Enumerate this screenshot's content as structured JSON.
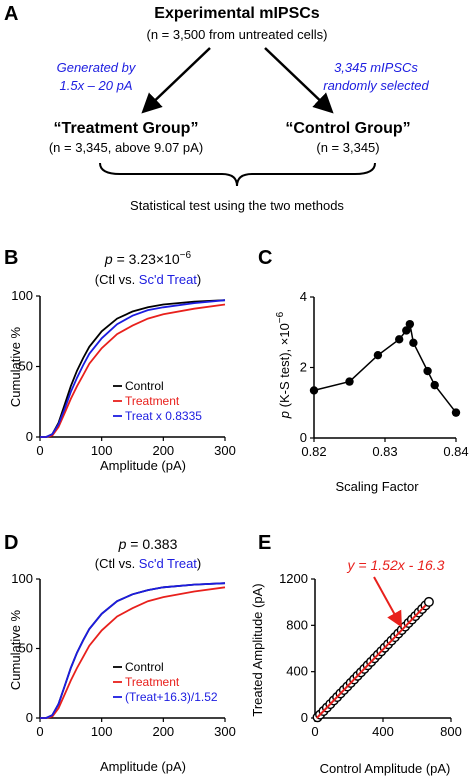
{
  "panel_letters": {
    "a": "A",
    "b": "B",
    "c": "C",
    "d": "D",
    "e": "E"
  },
  "panel_a": {
    "title": "Experimental mIPSCs",
    "title_sub": "(n = 3,500 from untreated cells)",
    "left_note": [
      "Generated by",
      "1.5x – 20 pA"
    ],
    "right_note": [
      "3,345 mIPSCs",
      "randomly selected"
    ],
    "left_group": "“Treatment Group”",
    "left_group_sub": "(n = 3,345, above 9.07 pA)",
    "right_group": "“Control Group”",
    "right_group_sub": "(n = 3,345)",
    "footer": "Statistical test using the two methods"
  },
  "colors": {
    "control": "#000000",
    "treatment": "#e8201c",
    "scaled": "#1c1ce0",
    "note": "#1c1ce0"
  },
  "chart_data": [
    {
      "panel": "B",
      "type": "line",
      "pvalue_prefix": "p",
      "pvalue_text": " = 3.23×10",
      "pvalue_exp": "−6",
      "comparison_pre": "(Ctl vs. ",
      "comparison_highlight": "Sc'd Treat",
      "comparison_post": ")",
      "xlabel": "Amplitude (pA)",
      "ylabel": "Cumulative %",
      "xlim": [
        0,
        300
      ],
      "ylim": [
        0,
        100
      ],
      "xticks": [
        "0",
        "100",
        "200",
        "300"
      ],
      "yticks": [
        "0",
        "50",
        "100"
      ],
      "legend_position": "bottom-right",
      "series": [
        {
          "name": "Control",
          "color": "#000000",
          "x": [
            0,
            10,
            20,
            30,
            40,
            50,
            60,
            70,
            80,
            100,
            125,
            150,
            175,
            200,
            250,
            300
          ],
          "y": [
            0,
            0,
            2,
            10,
            23,
            36,
            47,
            56,
            64,
            75,
            84,
            89,
            92,
            94,
            96,
            97
          ]
        },
        {
          "name": "Treatment",
          "color": "#e8201c",
          "x": [
            0,
            10,
            20,
            30,
            40,
            50,
            60,
            70,
            80,
            100,
            125,
            150,
            175,
            200,
            250,
            300
          ],
          "y": [
            0,
            0,
            1,
            7,
            17,
            27,
            36,
            44,
            52,
            63,
            73,
            79,
            84,
            87,
            91,
            94
          ]
        },
        {
          "name": "Treat x 0.8335",
          "color": "#1c1ce0",
          "x": [
            0,
            10,
            20,
            30,
            40,
            50,
            60,
            70,
            80,
            100,
            125,
            150,
            175,
            200,
            250,
            300
          ],
          "y": [
            0,
            0,
            2,
            9,
            20,
            32,
            42,
            51,
            59,
            70,
            80,
            86,
            90,
            92,
            95,
            97
          ]
        }
      ]
    },
    {
      "panel": "C",
      "type": "line",
      "xlabel": "Scaling Factor",
      "ylabel_prefix": "p",
      "ylabel_text": " (K-S test), ×10",
      "ylabel_exp": "−6",
      "xlim": [
        0.82,
        0.84
      ],
      "ylim": [
        0,
        4
      ],
      "xticks": [
        "0.82",
        "0.83",
        "0.84"
      ],
      "yticks": [
        "0",
        "2",
        "4"
      ],
      "series": [
        {
          "x": [
            0.82,
            0.825,
            0.829,
            0.832,
            0.833,
            0.8335,
            0.834,
            0.836,
            0.837,
            0.84
          ],
          "y": [
            1.35,
            1.6,
            2.35,
            2.8,
            3.05,
            3.23,
            2.7,
            1.9,
            1.5,
            0.72
          ]
        }
      ]
    },
    {
      "panel": "D",
      "type": "line",
      "pvalue_prefix": "p",
      "pvalue_text": " = 0.383",
      "comparison_pre": "(Ctl vs. ",
      "comparison_highlight": "Sc'd Treat",
      "comparison_post": ")",
      "xlabel": "Amplitude (pA)",
      "ylabel": "Cumulative %",
      "xlim": [
        0,
        300
      ],
      "ylim": [
        0,
        100
      ],
      "xticks": [
        "0",
        "100",
        "200",
        "300"
      ],
      "yticks": [
        "0",
        "50",
        "100"
      ],
      "legend_position": "bottom-right",
      "series": [
        {
          "name": "Control",
          "color": "#000000",
          "x": [
            0,
            10,
            20,
            30,
            40,
            50,
            60,
            70,
            80,
            100,
            125,
            150,
            175,
            200,
            250,
            300
          ],
          "y": [
            0,
            0,
            2,
            10,
            23,
            36,
            47,
            56,
            64,
            75,
            84,
            89,
            92,
            94,
            96,
            97
          ]
        },
        {
          "name": "Treatment",
          "color": "#e8201c",
          "x": [
            0,
            10,
            20,
            30,
            40,
            50,
            60,
            70,
            80,
            100,
            125,
            150,
            175,
            200,
            250,
            300
          ],
          "y": [
            0,
            0,
            1,
            7,
            17,
            27,
            36,
            44,
            52,
            63,
            73,
            79,
            84,
            87,
            91,
            94
          ]
        },
        {
          "name": "(Treat+16.3)/1.52",
          "color": "#1c1ce0",
          "x": [
            0,
            10,
            20,
            30,
            40,
            50,
            60,
            70,
            80,
            100,
            125,
            150,
            175,
            200,
            250,
            300
          ],
          "y": [
            0,
            0,
            2,
            10,
            23,
            36,
            47,
            56,
            64,
            75,
            84,
            89,
            92,
            94,
            96,
            97
          ]
        }
      ]
    },
    {
      "panel": "E",
      "type": "scatter",
      "xlabel": "Control Amplitude (pA)",
      "ylabel": "Treated Amplitude (pA)",
      "xlim": [
        0,
        800
      ],
      "ylim": [
        0,
        1200
      ],
      "xticks": [
        "0",
        "400",
        "800"
      ],
      "yticks": [
        "0",
        "400",
        "800",
        "1200"
      ],
      "fit_label": "y = 1.52x - 16.3",
      "fit": {
        "slope": 1.52,
        "intercept": -16.3
      },
      "points_x": [
        15,
        30,
        50,
        70,
        90,
        110,
        130,
        150,
        170,
        190,
        210,
        230,
        250,
        270,
        290,
        310,
        330,
        350,
        370,
        390,
        410,
        430,
        450,
        470,
        490,
        510,
        530,
        550,
        570,
        590,
        610,
        630,
        650,
        670
      ],
      "points_y": [
        6,
        29,
        60,
        90,
        120,
        151,
        181,
        212,
        242,
        272,
        303,
        333,
        364,
        394,
        424,
        455,
        485,
        516,
        546,
        576,
        607,
        637,
        668,
        698,
        729,
        759,
        789,
        820,
        850,
        880,
        911,
        941,
        972,
        1002
      ]
    }
  ]
}
